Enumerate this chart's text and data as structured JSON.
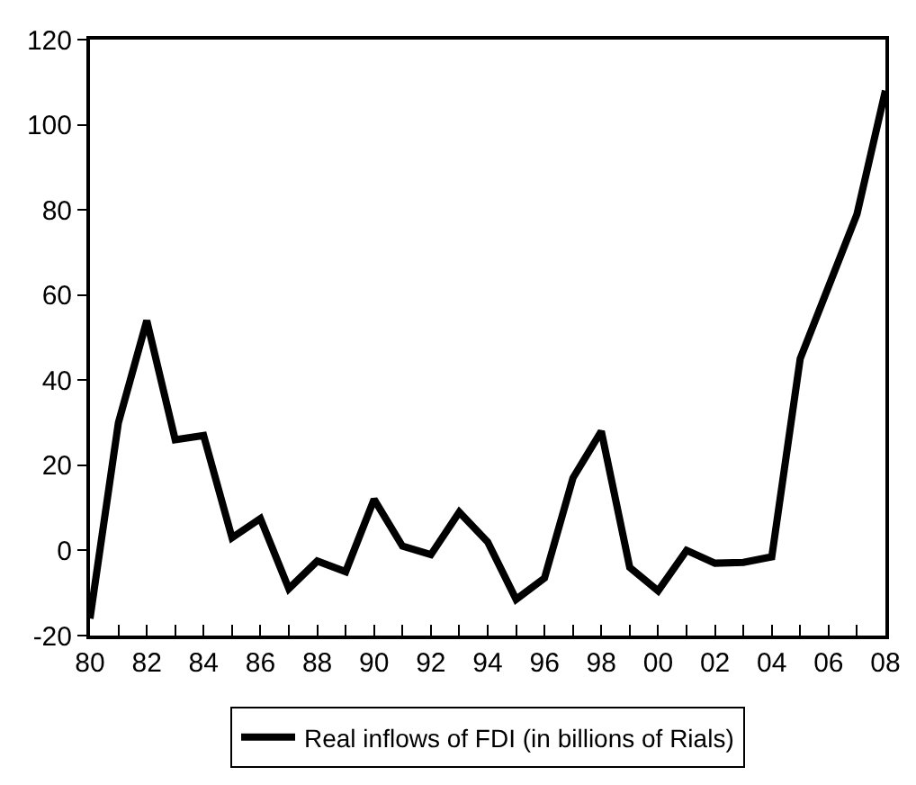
{
  "chart_data": {
    "type": "line",
    "x": [
      1980,
      1981,
      1982,
      1983,
      1984,
      1985,
      1986,
      1987,
      1988,
      1989,
      1990,
      1991,
      1992,
      1993,
      1994,
      1995,
      1996,
      1997,
      1998,
      1999,
      2000,
      2001,
      2002,
      2003,
      2004,
      2005,
      2006,
      2007,
      2008
    ],
    "series": [
      {
        "name": "Real inflows of FDI (in billions of Rials)",
        "color": "#000000",
        "values": [
          -16,
          30,
          54,
          26,
          27,
          3,
          7.5,
          -9,
          -2.5,
          -5,
          12,
          1,
          -1,
          9,
          2,
          -11.5,
          -6.5,
          17,
          28,
          -4,
          -9.5,
          0,
          -3,
          -2.8,
          -1.5,
          45,
          62,
          79,
          108
        ]
      }
    ],
    "xlim": [
      1980,
      2008
    ],
    "xticks": [
      {
        "value": 1980,
        "label": "80"
      },
      {
        "value": 1981,
        "label": null
      },
      {
        "value": 1982,
        "label": "82"
      },
      {
        "value": 1983,
        "label": null
      },
      {
        "value": 1984,
        "label": "84"
      },
      {
        "value": 1985,
        "label": null
      },
      {
        "value": 1986,
        "label": "86"
      },
      {
        "value": 1987,
        "label": null
      },
      {
        "value": 1988,
        "label": "88"
      },
      {
        "value": 1989,
        "label": null
      },
      {
        "value": 1990,
        "label": "90"
      },
      {
        "value": 1991,
        "label": null
      },
      {
        "value": 1992,
        "label": "92"
      },
      {
        "value": 1993,
        "label": null
      },
      {
        "value": 1994,
        "label": "94"
      },
      {
        "value": 1995,
        "label": null
      },
      {
        "value": 1996,
        "label": "96"
      },
      {
        "value": 1997,
        "label": null
      },
      {
        "value": 1998,
        "label": "98"
      },
      {
        "value": 1999,
        "label": null
      },
      {
        "value": 2000,
        "label": "00"
      },
      {
        "value": 2001,
        "label": null
      },
      {
        "value": 2002,
        "label": "02"
      },
      {
        "value": 2003,
        "label": null
      },
      {
        "value": 2004,
        "label": "04"
      },
      {
        "value": 2005,
        "label": null
      },
      {
        "value": 2006,
        "label": "06"
      },
      {
        "value": 2007,
        "label": null
      },
      {
        "value": 2008,
        "label": "08"
      }
    ],
    "ylim": [
      -20,
      120
    ],
    "yticks": [
      -20,
      0,
      20,
      40,
      60,
      80,
      100,
      120
    ],
    "legend": "bottom",
    "marker": "none",
    "line_style": "solid"
  }
}
